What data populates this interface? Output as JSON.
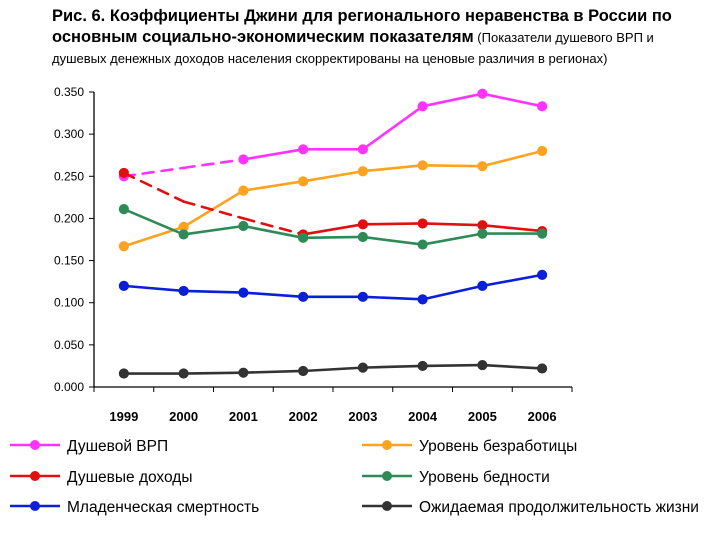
{
  "title": {
    "line1": "Рис. 6. Коэффициенты Джини для регионального неравенства в России по",
    "line2_bold": "основным социально-экономическим показателям",
    "line2_note": " (Показатели душевого ВРП и",
    "line3": "душевых денежных доходов населения скорректированы на ценовые различия в регионах)"
  },
  "chart_data": {
    "type": "line",
    "categories": [
      "1999",
      "2000",
      "2001",
      "2002",
      "2003",
      "2004",
      "2005",
      "2006"
    ],
    "ylim": [
      0,
      0.35
    ],
    "yticks": [
      "0.000",
      "0.050",
      "0.100",
      "0.150",
      "0.200",
      "0.250",
      "0.300",
      "0.350"
    ],
    "grid": false,
    "legend_position": "bottom",
    "series": [
      {
        "name": "Душевой ВРП",
        "color": "#ff33ff",
        "dash_segments": [
          0,
          1
        ],
        "marker": "circle",
        "values": [
          0.25,
          0.26,
          0.27,
          0.282,
          0.282,
          0.333,
          0.348,
          0.333
        ]
      },
      {
        "name": "Уровень безработицы",
        "color": "#ffa21f",
        "dash_segments": [],
        "marker": "circle",
        "values": [
          0.167,
          0.19,
          0.233,
          0.244,
          0.256,
          0.263,
          0.262,
          0.28
        ]
      },
      {
        "name": "Душевые доходы",
        "color": "#e01010",
        "dash_segments": [
          0,
          1,
          2
        ],
        "marker": "circle",
        "values": [
          0.254,
          0.22,
          0.2,
          0.181,
          0.193,
          0.194,
          0.192,
          0.185
        ]
      },
      {
        "name": "Уровень бедности",
        "color": "#2e8b57",
        "dash_segments": [],
        "marker": "circle",
        "values": [
          0.211,
          0.181,
          0.191,
          0.177,
          0.178,
          0.169,
          0.182,
          0.182
        ]
      },
      {
        "name": "Младенческая смертность",
        "color": "#0a1fd6",
        "dash_segments": [],
        "marker": "circle",
        "values": [
          0.12,
          0.114,
          0.112,
          0.107,
          0.107,
          0.104,
          0.12,
          0.133
        ]
      },
      {
        "name": "Ожидаемая продолжительность жизни",
        "color": "#333333",
        "dash_segments": [],
        "marker": "circle",
        "values": [
          0.016,
          0.016,
          0.017,
          0.019,
          0.023,
          0.025,
          0.026,
          0.022
        ]
      }
    ]
  }
}
